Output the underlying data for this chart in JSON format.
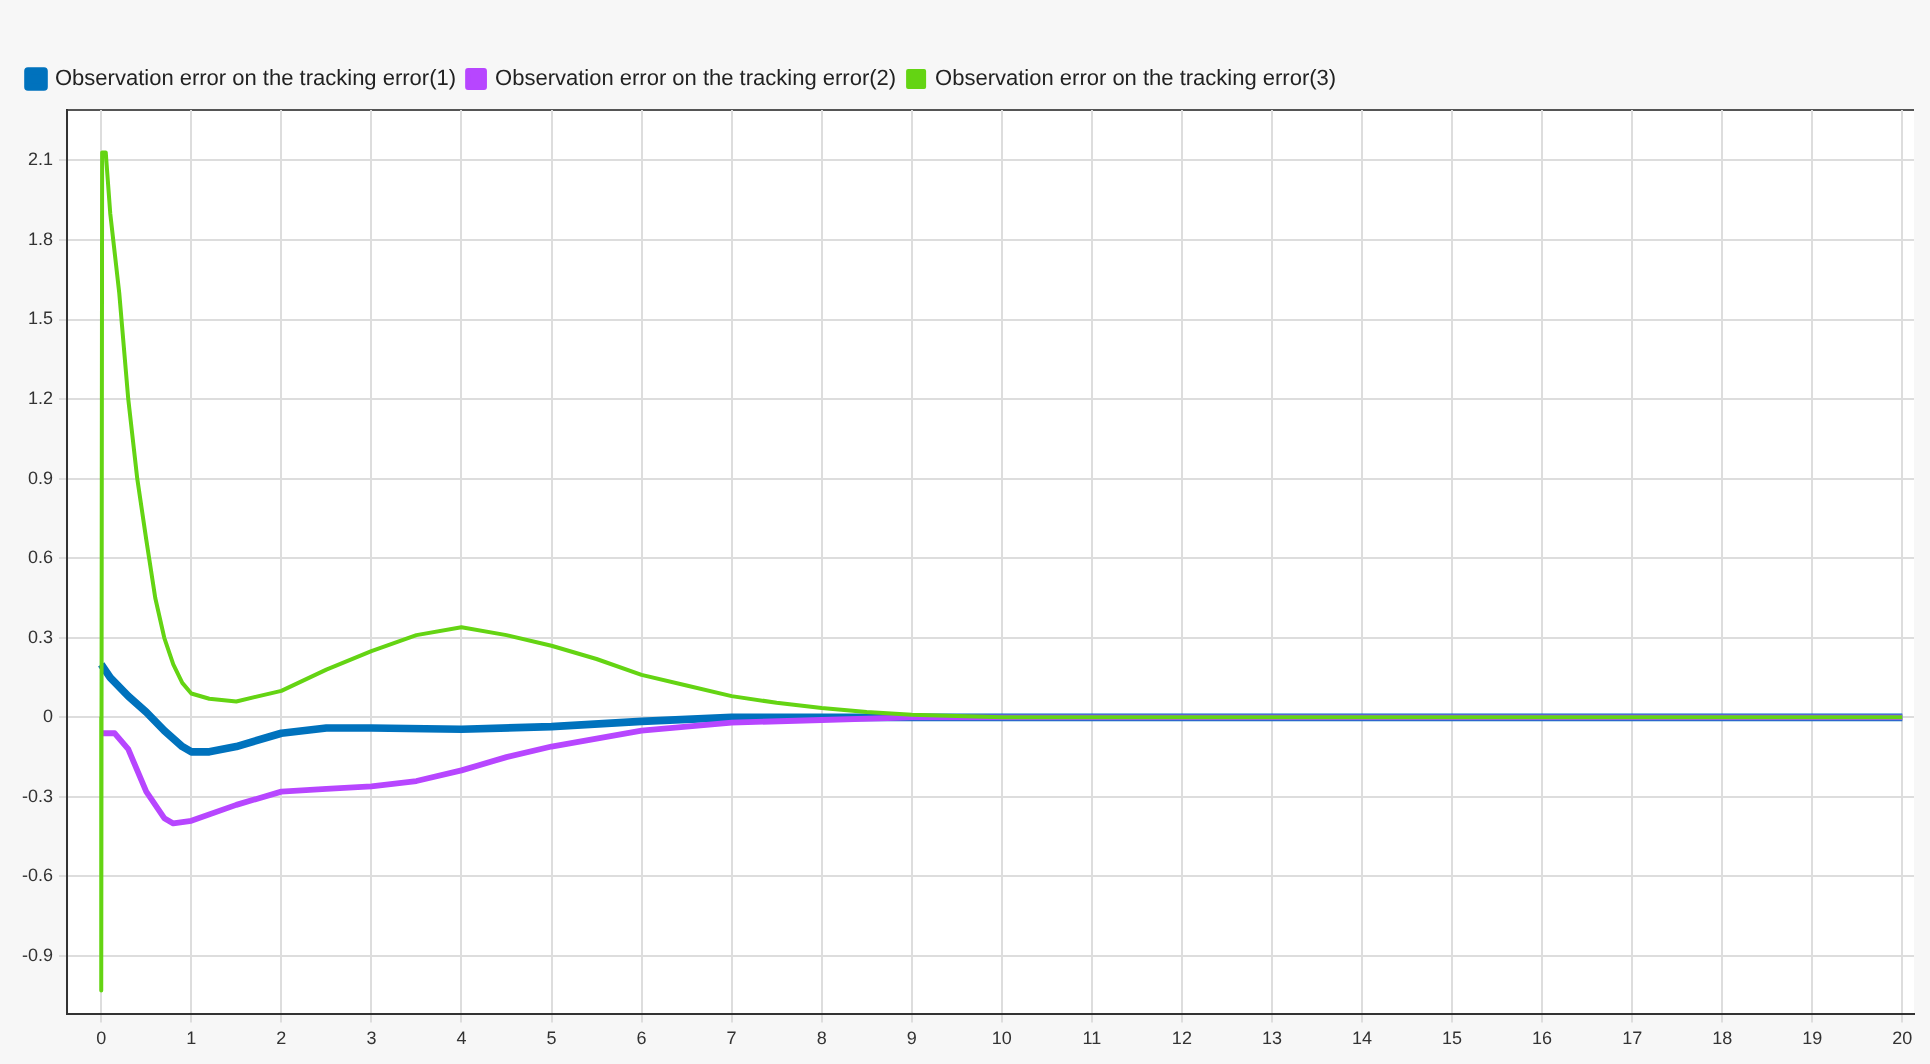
{
  "chart_data": {
    "type": "line",
    "legend": "top left",
    "grid": true,
    "marker": "none",
    "line_style": "solid",
    "xlim": [
      -0.38,
      20.13
    ],
    "xticks": [
      0,
      1,
      2,
      3,
      4,
      5,
      6,
      7,
      8,
      9,
      10,
      11,
      12,
      13,
      14,
      15,
      16,
      17,
      18,
      19,
      20
    ],
    "ylim": [
      -1.12,
      2.29
    ],
    "yticks": [
      -0.9,
      -0.6,
      -0.3,
      0,
      0.3,
      0.6,
      0.9,
      1.2,
      1.5,
      1.8,
      2.1
    ],
    "series": [
      {
        "name": "Observation error on the tracking error(1)",
        "color": "#0072bd",
        "x": [
          0,
          0.1,
          0.3,
          0.5,
          0.7,
          0.9,
          1,
          1.2,
          1.5,
          2,
          2.5,
          3,
          4,
          5,
          6,
          7,
          8,
          20
        ],
        "values": [
          0.2,
          0.15,
          0.08,
          0.02,
          -0.05,
          -0.11,
          -0.13,
          -0.13,
          -0.11,
          -0.06,
          -0.04,
          -0.04,
          -0.045,
          -0.035,
          -0.015,
          0,
          0,
          0
        ]
      },
      {
        "name": "Observation error on the tracking error(2)",
        "color": "#b746ff",
        "x": [
          0,
          0.15,
          0.3,
          0.5,
          0.7,
          0.8,
          1,
          1.5,
          2,
          2.5,
          3,
          3.5,
          4,
          4.5,
          5,
          5.5,
          6,
          7,
          8,
          9,
          20
        ],
        "values": [
          -0.06,
          -0.06,
          -0.12,
          -0.28,
          -0.38,
          -0.4,
          -0.39,
          -0.33,
          -0.28,
          -0.27,
          -0.26,
          -0.24,
          -0.2,
          -0.15,
          -0.11,
          -0.08,
          -0.05,
          -0.02,
          -0.01,
          0,
          0
        ]
      },
      {
        "name": "Observation error on the tracking error(3)",
        "color": "#64d413",
        "x": [
          0,
          0,
          0.01,
          0.05,
          0.1,
          0.2,
          0.3,
          0.4,
          0.5,
          0.6,
          0.7,
          0.8,
          0.9,
          1,
          1.2,
          1.5,
          2,
          2.5,
          3,
          3.5,
          4,
          4.5,
          5,
          5.5,
          6,
          6.5,
          7,
          7.5,
          8,
          8.5,
          9,
          10,
          20
        ],
        "values": [
          0,
          -1.03,
          2.13,
          2.13,
          1.9,
          1.6,
          1.2,
          0.9,
          0.67,
          0.45,
          0.3,
          0.2,
          0.13,
          0.09,
          0.07,
          0.06,
          0.1,
          0.18,
          0.25,
          0.31,
          0.34,
          0.31,
          0.27,
          0.22,
          0.16,
          0.12,
          0.08,
          0.055,
          0.035,
          0.02,
          0.01,
          0,
          0
        ]
      }
    ]
  }
}
